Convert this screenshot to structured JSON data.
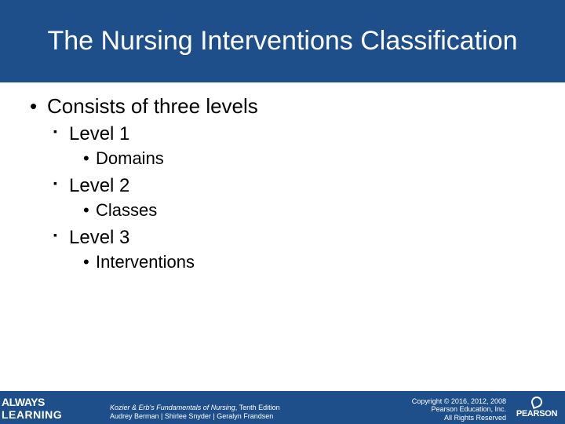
{
  "title": "The Nursing Interventions Classification",
  "title_fontsize": 34,
  "title_color": "#ffffff",
  "header_bg": "#1e4f8a",
  "body_bg": "#ffffff",
  "text_color": "#000000",
  "body_fontsize_l1": 26,
  "body_fontsize_l2": 24,
  "body_fontsize_l3": 22,
  "bullets": {
    "l1_text": "Consists of three levels",
    "items": [
      {
        "label": "Level 1",
        "sub": "Domains"
      },
      {
        "label": "Level 2",
        "sub": "Classes"
      },
      {
        "label": "Level 3",
        "sub": "Interventions"
      }
    ]
  },
  "footer": {
    "bg": "#1e4f8a",
    "always_learning_top": "ALWAYS",
    "always_learning_bot": "LEARNING",
    "book_title": "Kozier & Erb's Fundamentals of Nursing",
    "book_edition": ", Tenth Edition",
    "authors": "Audrey Berman | Shirlee Snyder | Geralyn Frandsen",
    "copyright_line1": "Copyright © 2016, 2012, 2008",
    "copyright_line2": "Pearson Education, Inc.",
    "copyright_line3": "All Rights Reserved",
    "pearson": "PEARSON",
    "credit_fontsize": 9,
    "copyright_fontsize": 9
  }
}
